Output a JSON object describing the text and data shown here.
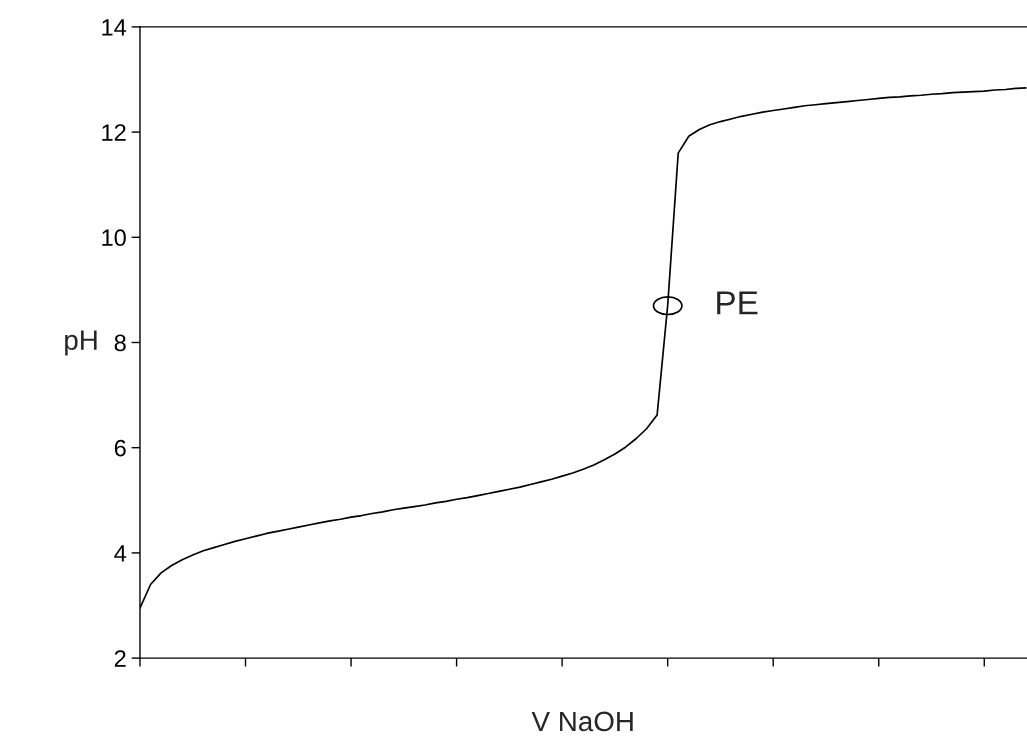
{
  "chart_data": {
    "type": "line",
    "xlabel": "V NaOH",
    "ylabel": "pH",
    "categories": [
      null,
      null,
      null,
      null,
      null,
      null,
      null,
      null,
      null,
      null,
      null,
      null,
      null,
      null,
      null,
      null,
      null,
      null,
      null,
      null,
      null,
      null,
      null,
      null,
      null,
      null,
      null,
      null,
      null,
      null,
      null,
      null,
      null,
      null,
      null,
      null,
      null,
      null,
      null,
      null,
      null,
      null,
      null,
      null,
      null,
      null,
      null,
      null,
      null,
      null,
      null,
      null,
      null,
      null,
      null,
      null,
      null,
      null,
      null,
      null,
      null,
      null,
      null,
      null,
      null,
      null,
      null,
      null,
      null,
      null,
      null,
      null,
      null,
      null,
      null,
      null,
      null,
      null,
      null,
      null,
      null,
      null,
      null,
      null,
      null
    ],
    "series": [
      {
        "color": "#000000",
        "values": [
          2.95,
          3.4,
          3.62,
          3.76,
          3.87,
          3.96,
          4.04,
          4.1,
          4.16,
          4.22,
          4.27,
          4.32,
          4.37,
          4.41,
          4.45,
          4.49,
          4.53,
          4.57,
          4.61,
          4.64,
          4.68,
          4.71,
          4.75,
          4.78,
          4.82,
          4.85,
          4.88,
          4.91,
          4.95,
          4.98,
          5.02,
          5.05,
          5.09,
          5.13,
          5.17,
          5.21,
          5.25,
          5.3,
          5.35,
          5.4,
          5.46,
          5.52,
          5.59,
          5.67,
          5.77,
          5.88,
          6.01,
          6.17,
          6.36,
          6.62,
          8.7,
          11.6,
          11.92,
          12.05,
          12.14,
          12.2,
          12.25,
          12.3,
          12.34,
          12.38,
          12.41,
          12.44,
          12.47,
          12.5,
          12.52,
          12.54,
          12.56,
          12.58,
          12.6,
          12.62,
          12.64,
          12.66,
          12.67,
          12.69,
          12.7,
          12.72,
          12.73,
          12.75,
          12.76,
          12.77,
          12.78,
          12.8,
          12.81,
          12.83,
          12.84
        ]
      }
    ],
    "ylim": [
      2,
      14
    ],
    "yticks": [
      2,
      4,
      6,
      8,
      10,
      12,
      14
    ],
    "tick_labels": "y",
    "grid": false,
    "legend": false,
    "marker": "none",
    "line_style": "solid",
    "annotations": [
      "PE"
    ]
  }
}
